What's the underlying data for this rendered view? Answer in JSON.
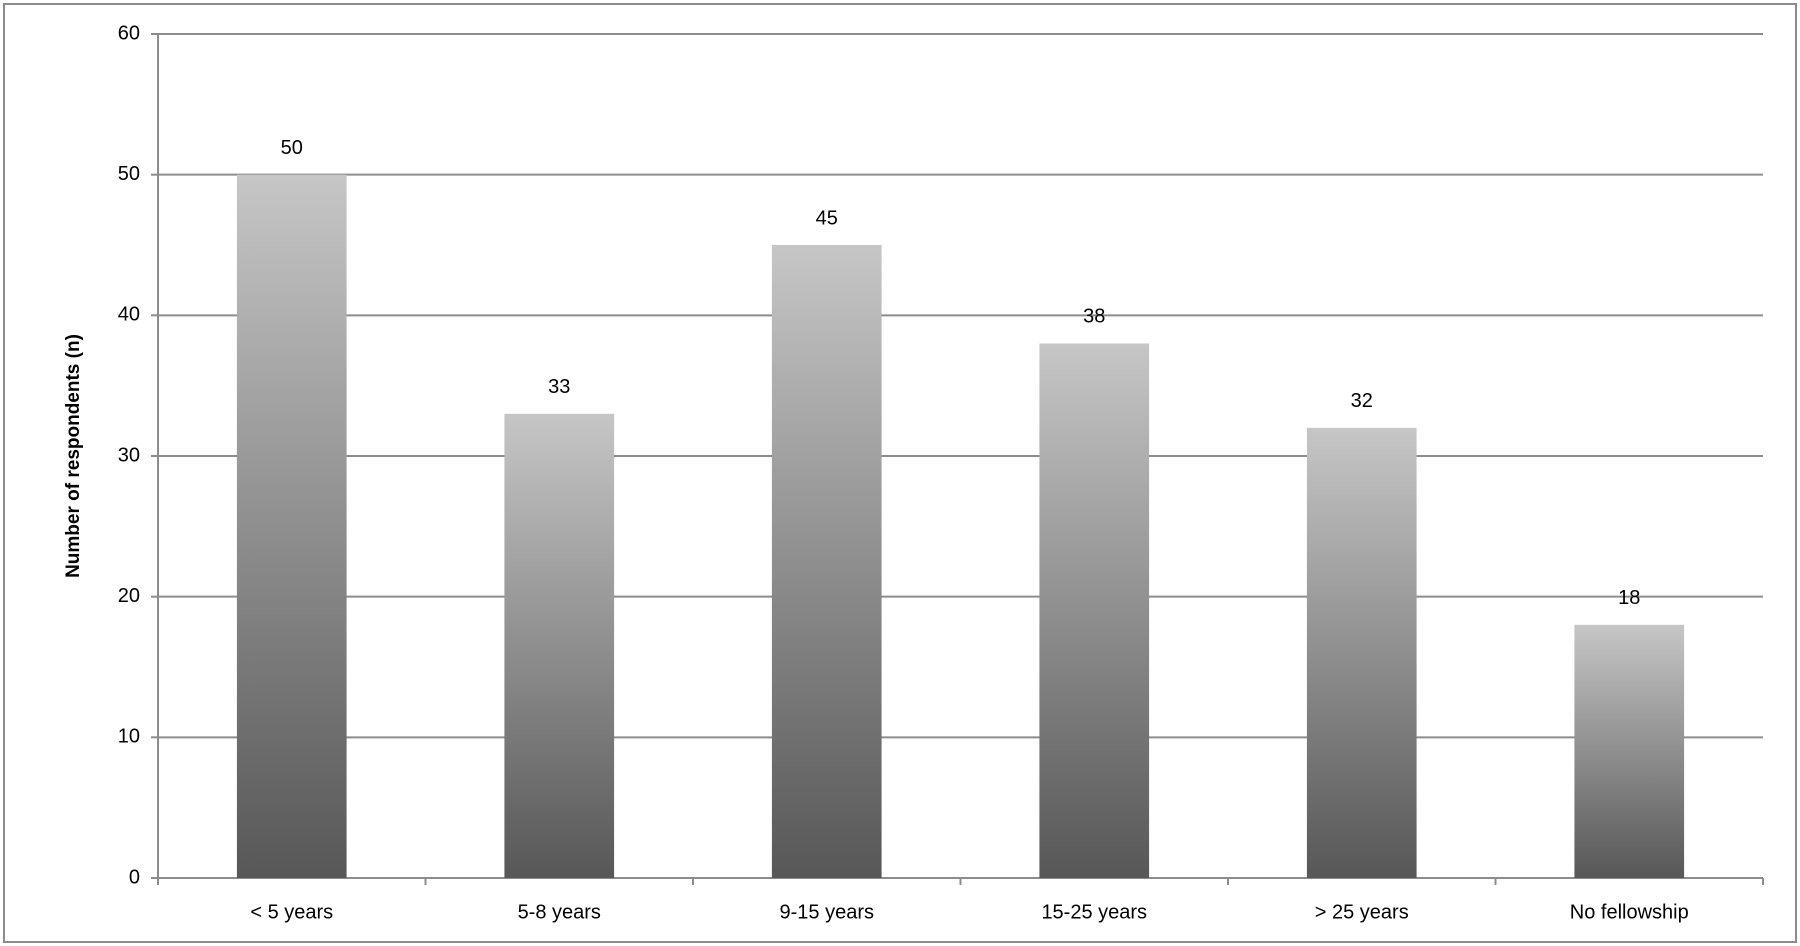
{
  "chart_data": {
    "type": "bar",
    "y_label": "Number of respondents (n)",
    "categories": [
      "< 5 years",
      "5-8 years",
      "9-15 years",
      "15-25 years",
      "> 25 years",
      "No fellowship"
    ],
    "values": [
      50,
      33,
      45,
      38,
      32,
      18
    ],
    "ylim": [
      0,
      60
    ],
    "yticks": [
      0,
      10,
      20,
      30,
      40,
      50,
      60
    ],
    "grid": true
  }
}
